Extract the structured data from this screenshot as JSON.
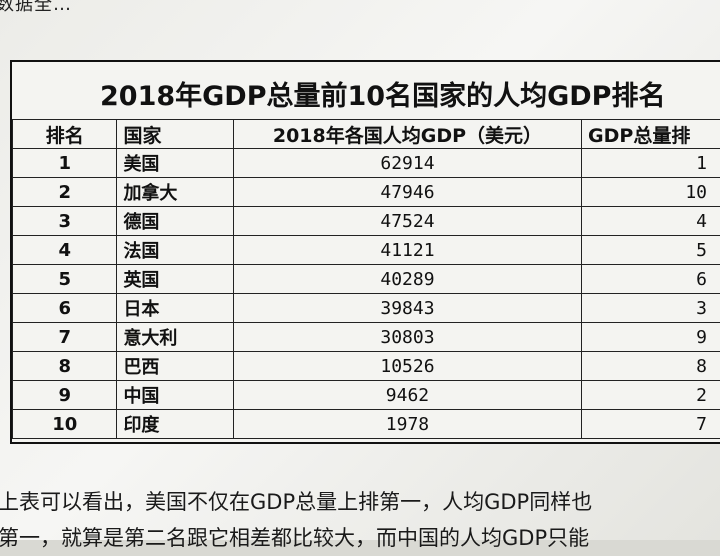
{
  "fragment_top": "数据全…",
  "sheet": {
    "title": "2018年GDP总量前10名国家的人均GDP排名",
    "headers": {
      "rank": "排名",
      "country": "国家",
      "gdp_per_capita": "2018年各国人均GDP（美元）",
      "total_rank": "GDP总量排"
    },
    "rows": [
      {
        "rank": "1",
        "country": "美国",
        "gdp": "62914",
        "total": "1"
      },
      {
        "rank": "2",
        "country": "加拿大",
        "gdp": "47946",
        "total": "10"
      },
      {
        "rank": "3",
        "country": "德国",
        "gdp": "47524",
        "total": "4"
      },
      {
        "rank": "4",
        "country": "法国",
        "gdp": "41121",
        "total": "5"
      },
      {
        "rank": "5",
        "country": "英国",
        "gdp": "40289",
        "total": "6"
      },
      {
        "rank": "6",
        "country": "日本",
        "gdp": "39843",
        "total": "3"
      },
      {
        "rank": "7",
        "country": "意大利",
        "gdp": "30803",
        "total": "9"
      },
      {
        "rank": "8",
        "country": "巴西",
        "gdp": "10526",
        "total": "8"
      },
      {
        "rank": "9",
        "country": "中国",
        "gdp": "9462",
        "total": "2"
      },
      {
        "rank": "10",
        "country": "印度",
        "gdp": "1978",
        "total": "7"
      }
    ]
  },
  "paragraph": {
    "line1": "上表可以看出，美国不仅在GDP总量上排第一，人均GDP同样也",
    "line2": "第一，就算是第二名跟它相差都比较大，而中国的人均GDP只能"
  }
}
